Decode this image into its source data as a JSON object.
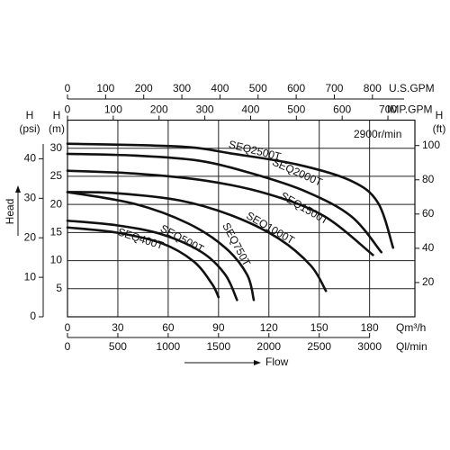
{
  "chart_data": {
    "type": "line",
    "annotation": "2900r/min",
    "head_label": "Head",
    "flow_label": "Flow",
    "x_label": "Qm³/h",
    "y_label": "H",
    "y_unit": "(m)",
    "xlim": [
      0,
      207
    ],
    "ylim": [
      0,
      35
    ],
    "xticks": [
      0,
      30,
      60,
      90,
      120,
      150,
      180
    ],
    "yticks": [
      5,
      10,
      15,
      20,
      25,
      30
    ],
    "grid": true,
    "color": "#111111",
    "series": [
      {
        "name": "SEQ2500T",
        "x": [
          0,
          67,
          99,
          137,
          169,
          185,
          194
        ],
        "values": [
          30.8,
          30.3,
          29,
          27.1,
          24.2,
          20.3,
          12.3
        ]
      },
      {
        "name": "SEQ2000T",
        "x": [
          0,
          40,
          78,
          110,
          142,
          169,
          187
        ],
        "values": [
          29,
          28.7,
          27.8,
          25.5,
          22.3,
          17.9,
          11.5
        ]
      },
      {
        "name": "SEQ1500T",
        "x": [
          0,
          40,
          83,
          120,
          153,
          182
        ],
        "values": [
          26,
          25.5,
          24.2,
          21.8,
          17.9,
          11
        ]
      },
      {
        "name": "SEQ1000T",
        "x": [
          0,
          29,
          67,
          99,
          126,
          145,
          154
        ],
        "values": [
          22.2,
          22,
          20.7,
          17.9,
          13.9,
          9.1,
          4.6
        ]
      },
      {
        "name": "SEQ750T",
        "x": [
          0,
          40,
          72,
          94,
          107,
          111
        ],
        "values": [
          22.2,
          20.1,
          16.6,
          12.3,
          7.5,
          3
        ]
      },
      {
        "name": "SEQ500T",
        "x": [
          0,
          29,
          56,
          80,
          94,
          101
        ],
        "values": [
          17.1,
          16.3,
          14.7,
          11.5,
          7.5,
          3
        ]
      },
      {
        "name": "SEQ400T",
        "x": [
          0,
          29,
          56,
          75,
          86,
          90
        ],
        "values": [
          15.9,
          15,
          13.1,
          9.9,
          5.9,
          3.5
        ]
      }
    ],
    "secondary_axes": [
      {
        "label": "H",
        "unit": "(psi)",
        "position": "left",
        "lim": [
          0,
          49.78
        ],
        "ticks": [
          0,
          10,
          20,
          30,
          40
        ]
      },
      {
        "label": "H",
        "unit": "(ft)",
        "position": "right",
        "lim": [
          0,
          114.83
        ],
        "ticks": [
          20,
          40,
          60,
          80,
          100
        ]
      },
      {
        "label": "IMP.GPM",
        "position": "top",
        "lim": [
          0,
          758.9
        ],
        "ticks": [
          0,
          100,
          200,
          300,
          400,
          500,
          600,
          700
        ]
      },
      {
        "label": "U.S.GPM",
        "position": "top",
        "lim": [
          0,
          911.4
        ],
        "ticks": [
          0,
          100,
          200,
          300,
          400,
          500,
          600,
          700,
          800
        ]
      },
      {
        "label": "Ql/min",
        "position": "bottom",
        "lim": [
          0,
          3450
        ],
        "ticks": [
          0,
          500,
          1000,
          1500,
          2000,
          2500,
          3000
        ]
      }
    ]
  }
}
